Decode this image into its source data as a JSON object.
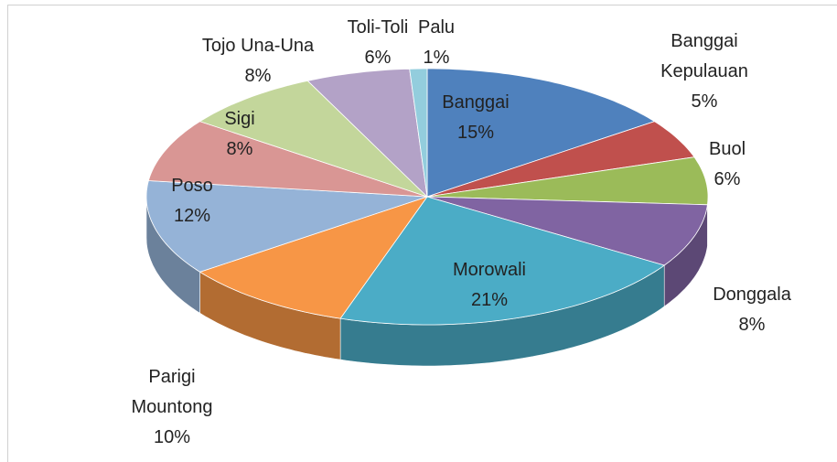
{
  "chart_data": {
    "type": "pie3d",
    "categories": [
      "Banggai",
      "Banggai Kepulauan",
      "Buol",
      "Donggala",
      "Morowali",
      "Parigi Mountong",
      "Poso",
      "Sigi",
      "Tojo Una-Una",
      "Toli-Toli",
      "Palu"
    ],
    "values": [
      15,
      5,
      6,
      8,
      21,
      10,
      12,
      8,
      8,
      6,
      1
    ],
    "value_labels": [
      "15%",
      "5%",
      "6%",
      "8%",
      "21%",
      "10%",
      "12%",
      "8%",
      "8%",
      "6%",
      "1%"
    ],
    "colors": [
      "#4f81bd",
      "#c0504d",
      "#9bbb59",
      "#8064a2",
      "#4bacc6",
      "#f79646",
      "#95b3d7",
      "#d99694",
      "#c3d69b",
      "#b3a2c7",
      "#93cddd"
    ]
  }
}
